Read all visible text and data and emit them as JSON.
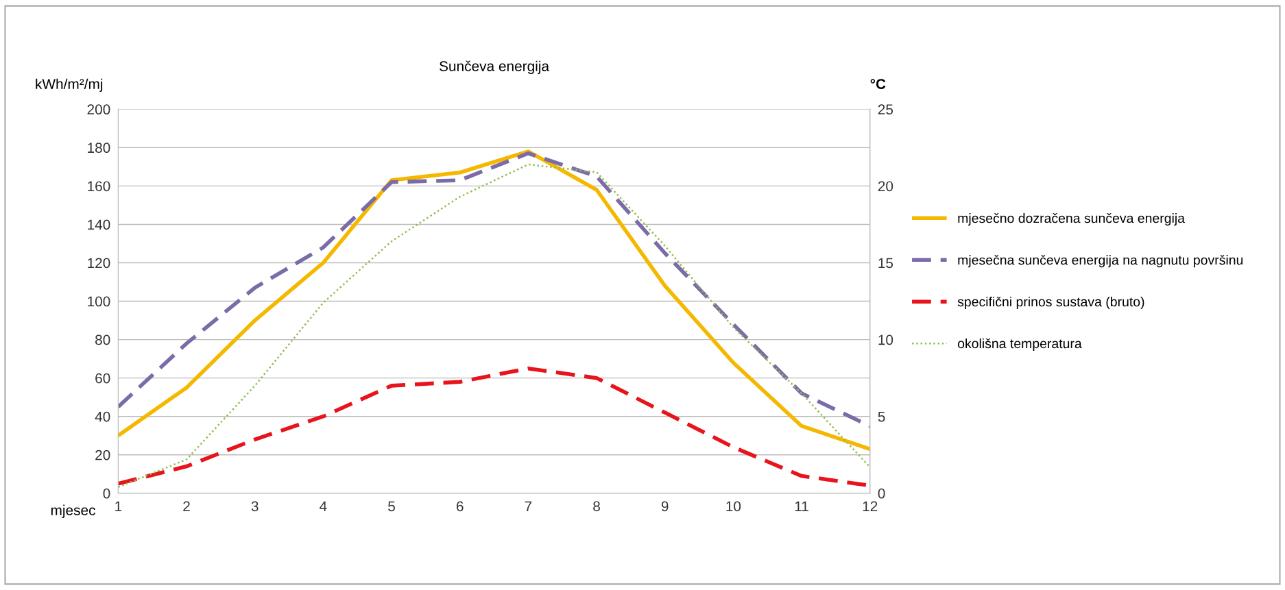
{
  "chart_data": {
    "type": "line",
    "title": "Sunčeva energija",
    "ylabel": "kWh/m²/mj",
    "y2label": "°C",
    "xlabel": "mjesec",
    "x": [
      1,
      2,
      3,
      4,
      5,
      6,
      7,
      8,
      9,
      10,
      11,
      12
    ],
    "xlim": [
      1,
      12
    ],
    "xticks": [
      1,
      2,
      3,
      4,
      5,
      6,
      7,
      8,
      9,
      10,
      11,
      12
    ],
    "ylim": [
      0,
      200
    ],
    "yticks": [
      0,
      20,
      40,
      60,
      80,
      100,
      120,
      140,
      160,
      180,
      200
    ],
    "y2lim": [
      0,
      25
    ],
    "y2ticks": [
      0,
      5,
      10,
      15,
      20,
      25
    ],
    "grid": "y",
    "legend": "right",
    "marker": "none",
    "series": [
      {
        "name": "mjesečno dozračena sunčeva energija",
        "color": "#f5b800",
        "line_style": "solid",
        "values": [
          30,
          55,
          90,
          120,
          163,
          167,
          178,
          158,
          108,
          68,
          35,
          23
        ]
      },
      {
        "name": "mjesečna sunčeva energija na nagnutu površinu",
        "color": "#7b6ba8",
        "line_style": "dashed",
        "values": [
          45,
          78,
          107,
          128,
          162,
          163,
          177,
          165,
          125,
          88,
          52,
          35
        ]
      },
      {
        "name": "specifični prinos sustava (bruto)",
        "color": "#e8141c",
        "line_style": "dashed",
        "values": [
          5,
          14,
          28,
          40,
          56,
          58,
          65,
          60,
          42,
          24,
          9,
          4
        ]
      },
      {
        "name": "okolišna temperatura",
        "color": "#8fbf4f",
        "line_style": "dotted",
        "axis": "y2",
        "values": [
          0.4,
          2.2,
          7.0,
          12.4,
          16.4,
          19.3,
          21.4,
          20.9,
          16.1,
          10.8,
          6.5,
          1.7
        ]
      }
    ]
  }
}
